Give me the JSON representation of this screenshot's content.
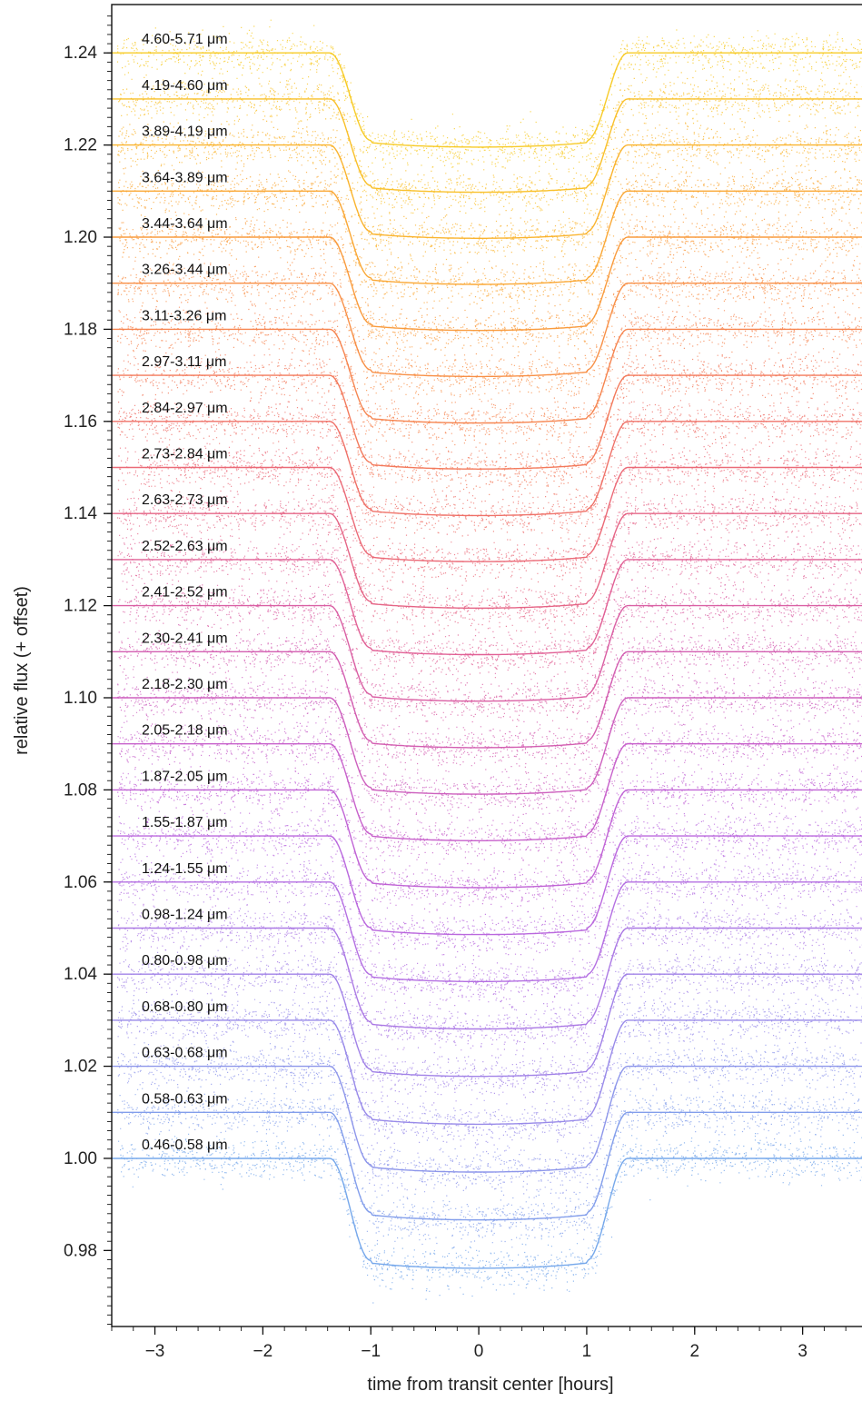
{
  "chart_data": {
    "type": "scatter",
    "title": "",
    "xlabel": "time from transit center [hours]",
    "ylabel": "relative flux (+ offset)",
    "xlim": [
      -3.4,
      3.55
    ],
    "ylim": [
      0.9635,
      1.2505
    ],
    "x_ticks": [
      -3,
      -2,
      -1,
      0,
      1,
      2,
      3
    ],
    "x_tick_labels": [
      "−3",
      "−2",
      "−1",
      "0",
      "1",
      "2",
      "3"
    ],
    "y_ticks": [
      0.98,
      1.0,
      1.02,
      1.04,
      1.06,
      1.08,
      1.1,
      1.12,
      1.14,
      1.16,
      1.18,
      1.2,
      1.22,
      1.24
    ],
    "y_tick_labels": [
      "0.98",
      "1.00",
      "1.02",
      "1.04",
      "1.06",
      "1.08",
      "1.10",
      "1.12",
      "1.14",
      "1.16",
      "1.18",
      "1.20",
      "1.22",
      "1.24"
    ],
    "offset_per_band": 0.01,
    "transit": {
      "t_first_contact": -1.38,
      "t_second_contact": -1.0,
      "t_third_contact": 1.0,
      "t_fourth_contact": 1.38
    },
    "series": [
      {
        "name": "0.46-0.58 μm",
        "baseline": 1.0,
        "depth": 0.0245,
        "color": "#6fa3ea"
      },
      {
        "name": "0.58-0.63 μm",
        "baseline": 1.01,
        "depth": 0.024,
        "color": "#7c99ea"
      },
      {
        "name": "0.63-0.68 μm",
        "baseline": 1.02,
        "depth": 0.0236,
        "color": "#8790e9"
      },
      {
        "name": "0.68-0.80 μm",
        "baseline": 1.03,
        "depth": 0.0232,
        "color": "#9385e8"
      },
      {
        "name": "0.80-0.98 μm",
        "baseline": 1.04,
        "depth": 0.0228,
        "color": "#9c7be6"
      },
      {
        "name": "0.98-1.24 μm",
        "baseline": 1.05,
        "depth": 0.0225,
        "color": "#a772e3"
      },
      {
        "name": "1.24-1.55 μm",
        "baseline": 1.06,
        "depth": 0.0222,
        "color": "#b068e0"
      },
      {
        "name": "1.55-1.87 μm",
        "baseline": 1.07,
        "depth": 0.022,
        "color": "#b660dc"
      },
      {
        "name": "1.87-2.05 μm",
        "baseline": 1.08,
        "depth": 0.0218,
        "color": "#bd5bd3"
      },
      {
        "name": "2.05-2.18 μm",
        "baseline": 1.09,
        "depth": 0.0216,
        "color": "#c459c8"
      },
      {
        "name": "2.18-2.30 μm",
        "baseline": 1.1,
        "depth": 0.0215,
        "color": "#ca57bb"
      },
      {
        "name": "2.30-2.41 μm",
        "baseline": 1.11,
        "depth": 0.0214,
        "color": "#d156ad"
      },
      {
        "name": "2.41-2.52 μm",
        "baseline": 1.12,
        "depth": 0.0213,
        "color": "#d8579f"
      },
      {
        "name": "2.52-2.63 μm",
        "baseline": 1.13,
        "depth": 0.0212,
        "color": "#df5990"
      },
      {
        "name": "2.63-2.73 μm",
        "baseline": 1.14,
        "depth": 0.0211,
        "color": "#e45d80"
      },
      {
        "name": "2.73-2.84 μm",
        "baseline": 1.15,
        "depth": 0.021,
        "color": "#ea6270"
      },
      {
        "name": "2.84-2.97 μm",
        "baseline": 1.16,
        "depth": 0.021,
        "color": "#ee6a61"
      },
      {
        "name": "2.97-3.11 μm",
        "baseline": 1.17,
        "depth": 0.0209,
        "color": "#f27353"
      },
      {
        "name": "3.11-3.26 μm",
        "baseline": 1.18,
        "depth": 0.0209,
        "color": "#f57e47"
      },
      {
        "name": "3.26-3.44 μm",
        "baseline": 1.19,
        "depth": 0.0208,
        "color": "#f88a3d"
      },
      {
        "name": "3.44-3.64 μm",
        "baseline": 1.2,
        "depth": 0.0208,
        "color": "#f99633"
      },
      {
        "name": "3.64-3.89 μm",
        "baseline": 1.21,
        "depth": 0.0208,
        "color": "#faa32b"
      },
      {
        "name": "3.89-4.19 μm",
        "baseline": 1.22,
        "depth": 0.0208,
        "color": "#fab024"
      },
      {
        "name": "4.19-4.60 μm",
        "baseline": 1.23,
        "depth": 0.0208,
        "color": "#f9bd1f"
      },
      {
        "name": "4.60-5.71 μm",
        "baseline": 1.24,
        "depth": 0.021,
        "color": "#f7c81c"
      }
    ]
  }
}
